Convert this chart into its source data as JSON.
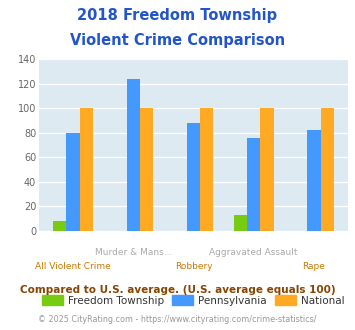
{
  "title_line1": "2018 Freedom Township",
  "title_line2": "Violent Crime Comparison",
  "title_color": "#2255cc",
  "cat_labels_top": [
    "",
    "Murder & Mans...",
    "",
    "Aggravated Assault",
    ""
  ],
  "cat_labels_bot": [
    "All Violent Crime",
    "",
    "Robbery",
    "",
    "Rape"
  ],
  "freedom_township": [
    8,
    0,
    0,
    13,
    0
  ],
  "pennsylvania": [
    80,
    124,
    88,
    76,
    82
  ],
  "national": [
    100,
    100,
    100,
    100,
    100
  ],
  "colors": {
    "freedom": "#77cc11",
    "pennsylvania": "#4499ff",
    "national": "#ffaa22"
  },
  "ylim": [
    0,
    140
  ],
  "yticks": [
    0,
    20,
    40,
    60,
    80,
    100,
    120,
    140
  ],
  "background_color": "#ddeaf2",
  "legend_labels": [
    "Freedom Township",
    "Pennsylvania",
    "National"
  ],
  "footnote1": "Compared to U.S. average. (U.S. average equals 100)",
  "footnote2": "© 2025 CityRating.com - https://www.cityrating.com/crime-statistics/",
  "footnote1_color": "#884400",
  "footnote2_color": "#999999",
  "top_label_color": "#aaaaaa",
  "bot_label_color": "#cc7700"
}
